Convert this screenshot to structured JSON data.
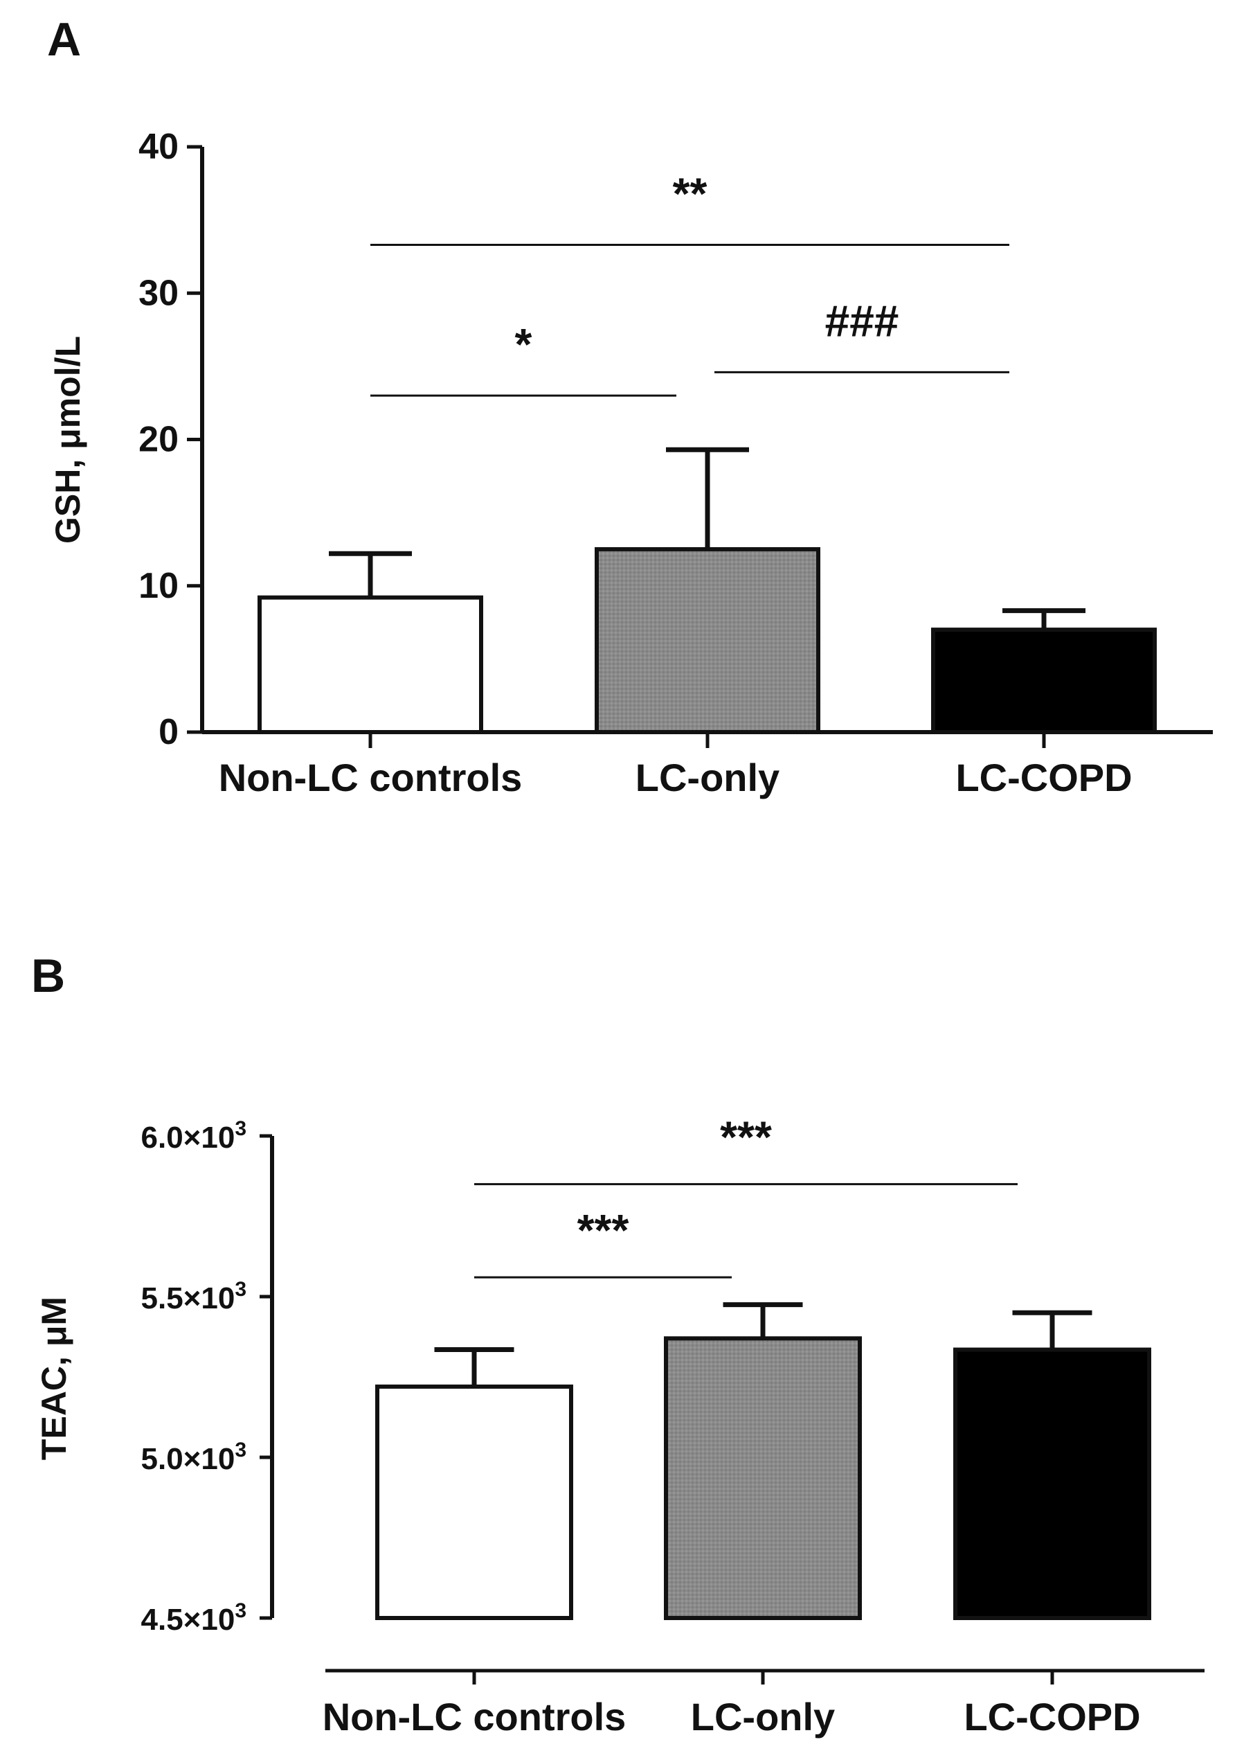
{
  "chart_data": [
    {
      "panel": "A",
      "type": "bar",
      "categories": [
        "Non-LC controls",
        "LC-only",
        "LC-COPD"
      ],
      "values": [
        9.2,
        12.5,
        7.0
      ],
      "errors": [
        3.0,
        6.8,
        1.3
      ],
      "fills": [
        "#ffffff",
        "#8c8c8c",
        "#000000"
      ],
      "ylabel": "GSH, μmol/L",
      "xlabel": "",
      "ylim": [
        0,
        40
      ],
      "yticks": [
        {
          "value": 0,
          "label": "0"
        },
        {
          "value": 10,
          "label": "10"
        },
        {
          "value": 20,
          "label": "20"
        },
        {
          "value": 30,
          "label": "30"
        },
        {
          "value": 40,
          "label": "40"
        }
      ],
      "significance": [
        {
          "from": 0,
          "to": 2,
          "y": 33.3,
          "label": "**"
        },
        {
          "from": 0,
          "to": 1,
          "y": 23.0,
          "label": "*"
        },
        {
          "from": 1,
          "to": 2,
          "y": 24.6,
          "label": "###"
        }
      ]
    },
    {
      "panel": "B",
      "type": "bar",
      "categories": [
        "Non-LC controls",
        "LC-only",
        "LC-COPD"
      ],
      "values": [
        5220,
        5370,
        5335
      ],
      "errors": [
        115,
        105,
        115
      ],
      "fills": [
        "#ffffff",
        "#8c8c8c",
        "#000000"
      ],
      "ylabel": "TEAC, μM",
      "xlabel": "",
      "ylim": [
        4500,
        6000
      ],
      "yticks": [
        {
          "value": 4500,
          "base": "4.5×10",
          "exp": "3"
        },
        {
          "value": 5000,
          "base": "5.0×10",
          "exp": "3"
        },
        {
          "value": 5500,
          "base": "5.5×10",
          "exp": "3"
        },
        {
          "value": 6000,
          "base": "6.0×10",
          "exp": "3"
        }
      ],
      "significance": [
        {
          "from": 0,
          "to": 2,
          "y": 5850,
          "label": "***"
        },
        {
          "from": 0,
          "to": 1,
          "y": 5560,
          "label": "***"
        }
      ]
    }
  ]
}
